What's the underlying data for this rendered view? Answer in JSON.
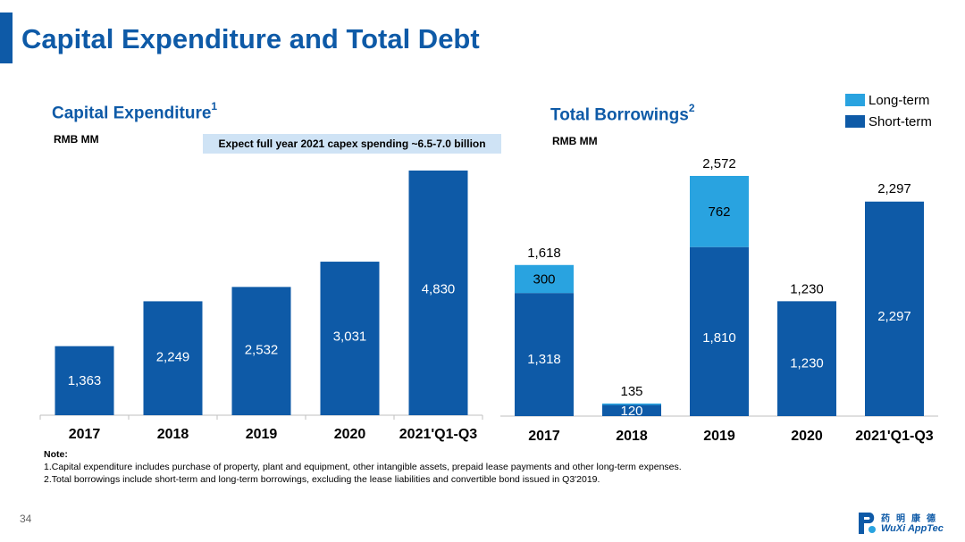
{
  "page": {
    "title": "Capital Expenditure and Total Debt",
    "page_number": "34"
  },
  "capex": {
    "title": "Capital Expenditure",
    "title_sup": "1",
    "unit": "RMB MM",
    "callout": "Expect full year 2021 capex spending ~6.5-7.0 billion"
  },
  "borrowings": {
    "title": "Total Borrowings",
    "title_sup": "2",
    "unit": "RMB MM"
  },
  "legend": {
    "long_term": "Long-term",
    "short_term": "Short-term"
  },
  "colors": {
    "dark_blue": "#0e5aa7",
    "light_blue": "#29a3e0",
    "axis": "#bfbfbf"
  },
  "notes": {
    "title": "Note:",
    "line1": "1.Capital expenditure includes purchase of property, plant and equipment, other intangible assets, prepaid lease payments and other long-term expenses.",
    "line2": "2.Total borrowings include short-term and long-term borrowings, excluding the lease liabilities and convertible bond issued in Q3'2019."
  },
  "logo": {
    "cn": "药明康德",
    "en": "WuXi AppTec"
  },
  "chart_data": [
    {
      "type": "bar",
      "title": "Capital Expenditure",
      "ylabel": "RMB MM",
      "categories": [
        "2017",
        "2018",
        "2019",
        "2020",
        "2021'Q1-Q3"
      ],
      "values": [
        1363,
        2249,
        2532,
        3031,
        4830
      ],
      "labels": [
        "1,363",
        "2,249",
        "2,532",
        "3,031",
        "4,830"
      ]
    },
    {
      "type": "bar",
      "stacked": true,
      "title": "Total Borrowings",
      "ylabel": "RMB MM",
      "categories": [
        "2017",
        "2018",
        "2019",
        "2020",
        "2021'Q1-Q3"
      ],
      "legend_position": "top-right",
      "series": [
        {
          "name": "Short-term",
          "values": [
            1318,
            120,
            1810,
            1230,
            2297
          ],
          "labels": [
            "1,318",
            "120",
            "1,810",
            "1,230",
            "2,297"
          ]
        },
        {
          "name": "Long-term",
          "values": [
            300,
            15,
            762,
            0,
            0
          ],
          "labels": [
            "300",
            "",
            "762",
            "",
            ""
          ]
        }
      ],
      "totals": [
        1618,
        135,
        2572,
        1230,
        2297
      ],
      "total_labels": [
        "1,618",
        "135",
        "2,572",
        "1,230",
        "2,297"
      ]
    }
  ]
}
